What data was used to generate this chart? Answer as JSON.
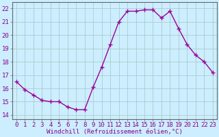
{
  "x": [
    0,
    1,
    2,
    3,
    4,
    5,
    6,
    7,
    8,
    9,
    10,
    11,
    12,
    13,
    14,
    15,
    16,
    17,
    18,
    19,
    20,
    21,
    22,
    23
  ],
  "y": [
    16.5,
    15.9,
    15.5,
    15.1,
    15.0,
    15.0,
    14.6,
    14.4,
    14.4,
    16.1,
    17.6,
    19.3,
    21.0,
    21.8,
    21.8,
    21.9,
    21.9,
    21.3,
    21.8,
    20.5,
    19.3,
    18.5,
    18.0,
    17.2
  ],
  "line_color": "#990099",
  "marker": "+",
  "markersize": 4,
  "linewidth": 1.0,
  "bg_color": "#cceeff",
  "grid_color": "#aacccc",
  "ylabel_ticks": [
    14,
    15,
    16,
    17,
    18,
    19,
    20,
    21,
    22
  ],
  "ylim": [
    13.7,
    22.5
  ],
  "xlim": [
    -0.5,
    23.5
  ],
  "xlabel": "Windchill (Refroidissement éolien,°C)",
  "tick_color": "#880088",
  "xlabel_fontsize": 6.5,
  "tick_fontsize": 6.5
}
